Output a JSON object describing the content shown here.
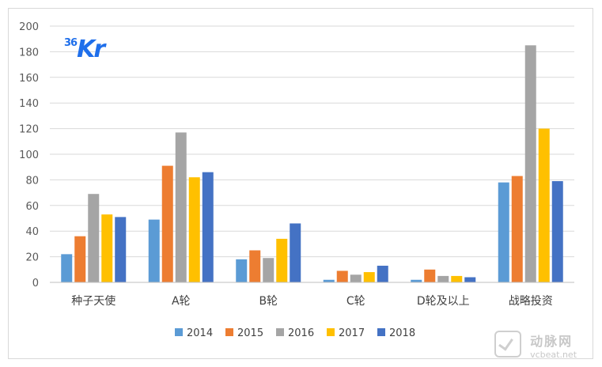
{
  "chart_data": {
    "type": "bar",
    "title": "",
    "xlabel": "",
    "ylabel": "",
    "ylim": [
      0,
      200
    ],
    "yticks": [
      0,
      20,
      40,
      60,
      80,
      100,
      120,
      140,
      160,
      180,
      200
    ],
    "grid": true,
    "legend_position": "bottom",
    "categories": [
      "种子天使",
      "A轮",
      "B轮",
      "C轮",
      "D轮及以上",
      "战略投资"
    ],
    "series": [
      {
        "name": "2014",
        "color": "#5b9bd5",
        "values": [
          22,
          49,
          18,
          2,
          2,
          78
        ]
      },
      {
        "name": "2015",
        "color": "#ed7d31",
        "values": [
          36,
          91,
          25,
          9,
          10,
          83
        ]
      },
      {
        "name": "2016",
        "color": "#a5a5a5",
        "values": [
          69,
          117,
          19,
          6,
          5,
          185
        ]
      },
      {
        "name": "2017",
        "color": "#ffc000",
        "values": [
          53,
          82,
          34,
          8,
          5,
          120
        ]
      },
      {
        "name": "2018",
        "color": "#4472c4",
        "values": [
          51,
          86,
          46,
          13,
          4,
          79
        ]
      }
    ]
  },
  "logo": {
    "num": "36",
    "kr": "Kr"
  },
  "watermark": {
    "cn": "动脉网",
    "url": "vcbeat.net"
  }
}
